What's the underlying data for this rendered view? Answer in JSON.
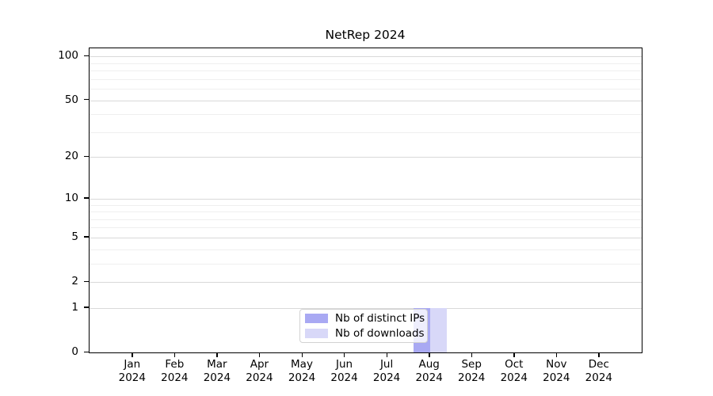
{
  "title": "NetRep 2024",
  "colors": {
    "distinct_ips": "#a9a9f3",
    "downloads": "#d8d8f8",
    "grid_major": "#d9d9d9",
    "grid_minor": "#efefef",
    "axis": "#000000"
  },
  "legend": {
    "items": [
      {
        "label": "Nb of distinct IPs",
        "color": "#a9a9f3"
      },
      {
        "label": "Nb of downloads",
        "color": "#d8d8f8"
      }
    ]
  },
  "chart_data": {
    "type": "bar",
    "title": "NetRep 2024",
    "categories": [
      "Jan",
      "Feb",
      "Mar",
      "Apr",
      "May",
      "Jun",
      "Jul",
      "Aug",
      "Sep",
      "Oct",
      "Nov",
      "Dec"
    ],
    "category_year": "2024",
    "series": [
      {
        "name": "Nb of distinct IPs",
        "color": "#a9a9f3",
        "values": [
          0,
          0,
          0,
          0,
          0,
          0,
          0,
          1,
          0,
          0,
          0,
          0
        ]
      },
      {
        "name": "Nb of downloads",
        "color": "#d8d8f8",
        "values": [
          0,
          0,
          0,
          0,
          0,
          0,
          0,
          1,
          0,
          0,
          0,
          0
        ]
      }
    ],
    "xlabel": "",
    "ylabel": "",
    "yscale": "log1p",
    "y_major_ticks": [
      0,
      1,
      2,
      5,
      10,
      20,
      50,
      100
    ],
    "y_minor_ticks": [
      3,
      4,
      6,
      7,
      8,
      9,
      30,
      40,
      60,
      70,
      80,
      90
    ],
    "ylim": [
      0,
      111
    ],
    "grid": "both",
    "legend_position": "lower-center-inside"
  }
}
